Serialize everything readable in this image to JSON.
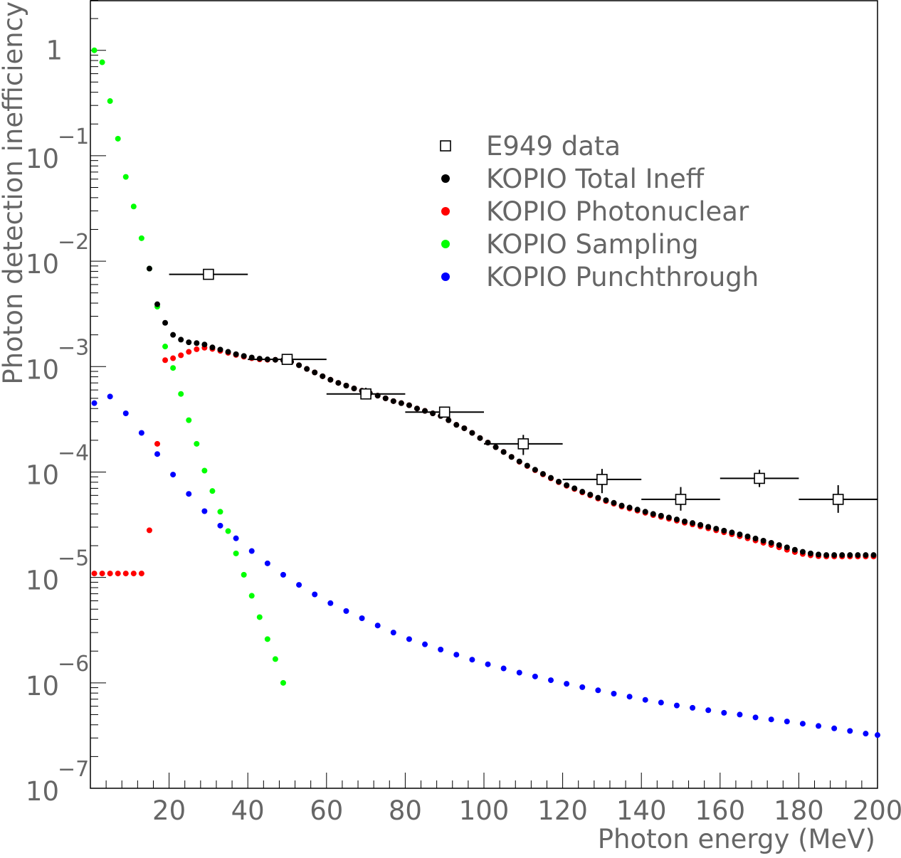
{
  "chart_data": {
    "type": "scatter",
    "xlabel": "Photon energy (MeV)",
    "ylabel": "Photon detection inefficiency",
    "xlim": [
      0,
      200
    ],
    "ylim": [
      1e-07,
      3
    ],
    "yscale": "log",
    "x_ticks": [
      20,
      40,
      60,
      80,
      100,
      120,
      140,
      160,
      180,
      200
    ],
    "y_ticks": [
      {
        "value": 1,
        "base": "1",
        "exp": ""
      },
      {
        "value": 0.1,
        "base": "10",
        "exp": "−1"
      },
      {
        "value": 0.01,
        "base": "10",
        "exp": "−2"
      },
      {
        "value": 0.001,
        "base": "10",
        "exp": "−3"
      },
      {
        "value": 0.0001,
        "base": "10",
        "exp": "−4"
      },
      {
        "value": 1e-05,
        "base": "10",
        "exp": "−5"
      },
      {
        "value": 1e-06,
        "base": "10",
        "exp": "−6"
      },
      {
        "value": 1e-07,
        "base": "10",
        "exp": "−7"
      }
    ],
    "grid": false,
    "legend_position": "top-right",
    "legend": [
      {
        "label": "E949 data",
        "marker": "open-square",
        "color": "#000000"
      },
      {
        "label": "KOPIO Total Ineff",
        "marker": "dot",
        "color": "#000000"
      },
      {
        "label": "KOPIO Photonuclear",
        "marker": "dot",
        "color": "#ff0000"
      },
      {
        "label": "KOPIO Sampling",
        "marker": "dot",
        "color": "#00ff00"
      },
      {
        "label": "KOPIO Punchthrough",
        "marker": "dot",
        "color": "#0000ff"
      }
    ],
    "e949_data": [
      {
        "x": 30,
        "y": 0.0075,
        "xerr": 10,
        "ylo": 0.0075,
        "yhi": 0.0075
      },
      {
        "x": 50,
        "y": 0.00117,
        "xerr": 10,
        "ylo": 0.00117,
        "yhi": 0.00117
      },
      {
        "x": 70,
        "y": 0.00055,
        "xerr": 10,
        "ylo": 0.00049,
        "yhi": 0.00063
      },
      {
        "x": 90,
        "y": 0.00037,
        "xerr": 10,
        "ylo": 0.00033,
        "yhi": 0.00041
      },
      {
        "x": 110,
        "y": 0.000185,
        "xerr": 10,
        "ylo": 0.000145,
        "yhi": 0.000225
      },
      {
        "x": 130,
        "y": 8.5e-05,
        "xerr": 10,
        "ylo": 6.3e-05,
        "yhi": 0.000107
      },
      {
        "x": 150,
        "y": 5.5e-05,
        "xerr": 10,
        "ylo": 4.3e-05,
        "yhi": 7.2e-05
      },
      {
        "x": 170,
        "y": 8.7e-05,
        "xerr": 10,
        "ylo": 7.2e-05,
        "yhi": 0.000105
      },
      {
        "x": 190,
        "y": 5.5e-05,
        "xerr": 10,
        "ylo": 4.1e-05,
        "yhi": 7.5e-05
      }
    ],
    "series": [
      {
        "name": "KOPIO Sampling",
        "color": "#00ff00",
        "points": [
          [
            1,
            1.0
          ],
          [
            3,
            0.77
          ],
          [
            5,
            0.33
          ],
          [
            7,
            0.145
          ],
          [
            9,
            0.063
          ],
          [
            11,
            0.033
          ],
          [
            13,
            0.0165
          ],
          [
            15,
            0.0085
          ],
          [
            17,
            0.0037
          ],
          [
            19,
            0.00155
          ],
          [
            21,
            0.00097
          ],
          [
            23,
            0.00055
          ],
          [
            25,
            0.00031
          ],
          [
            27,
            0.000185
          ],
          [
            29,
            0.000103
          ],
          [
            31,
            6.6e-05
          ],
          [
            33,
            4.2e-05
          ],
          [
            35,
            2.75e-05
          ],
          [
            37,
            1.69e-05
          ],
          [
            39,
            1.06e-05
          ],
          [
            41,
            6.7e-06
          ],
          [
            43,
            4.2e-06
          ],
          [
            45,
            2.6e-06
          ],
          [
            47,
            1.68e-06
          ],
          [
            49,
            1e-06
          ]
        ]
      },
      {
        "name": "KOPIO Photonuclear",
        "color": "#ff0000",
        "points": [
          [
            1,
            1.09e-05
          ],
          [
            3,
            1.09e-05
          ],
          [
            5,
            1.09e-05
          ],
          [
            7,
            1.09e-05
          ],
          [
            9,
            1.09e-05
          ],
          [
            11,
            1.09e-05
          ],
          [
            13,
            1.09e-05
          ],
          [
            15,
            2.8e-05
          ],
          [
            17,
            0.000185
          ],
          [
            19,
            0.00115
          ],
          [
            21,
            0.0012
          ],
          [
            23,
            0.00128
          ],
          [
            25,
            0.00138
          ],
          [
            27,
            0.00146
          ],
          [
            29,
            0.00151
          ],
          [
            31,
            0.00147
          ],
          [
            33,
            0.00141
          ],
          [
            35,
            0.00135
          ],
          [
            37,
            0.00129
          ],
          [
            39,
            0.00124
          ],
          [
            41,
            0.0012
          ],
          [
            43,
            0.00117
          ],
          [
            45,
            0.00116
          ],
          [
            47,
            0.00116
          ],
          [
            49,
            0.00115
          ],
          [
            51,
            0.00111
          ],
          [
            53,
            0.00103
          ],
          [
            55,
            0.00095
          ],
          [
            57,
            0.00088
          ],
          [
            59,
            0.00081
          ],
          [
            61,
            0.00075
          ],
          [
            63,
            0.0007
          ],
          [
            65,
            0.00066
          ],
          [
            67,
            0.00062
          ],
          [
            69,
            0.00059
          ],
          [
            71,
            0.00056
          ],
          [
            73,
            0.00053
          ],
          [
            75,
            0.0005
          ],
          [
            77,
            0.00047
          ],
          [
            79,
            0.00045
          ],
          [
            81,
            0.00043
          ],
          [
            83,
            0.0004
          ],
          [
            85,
            0.00038
          ],
          [
            87,
            0.00036
          ],
          [
            89,
            0.00034
          ],
          [
            91,
            0.00031
          ],
          [
            93,
            0.00028
          ],
          [
            95,
            0.00026
          ],
          [
            97,
            0.000235
          ],
          [
            99,
            0.00021
          ],
          [
            101,
            0.00019
          ],
          [
            103,
            0.000172
          ],
          [
            105,
            0.000155
          ],
          [
            107,
            0.000139
          ],
          [
            109,
            0.000125
          ],
          [
            111,
            0.000114
          ],
          [
            113,
            0.000104
          ],
          [
            115,
            9.5e-05
          ],
          [
            117,
            8.7e-05
          ],
          [
            119,
            8e-05
          ],
          [
            121,
            7.4e-05
          ],
          [
            123,
            6.9e-05
          ],
          [
            125,
            6.4e-05
          ],
          [
            127,
            6e-05
          ],
          [
            129,
            5.6e-05
          ],
          [
            131,
            5.3e-05
          ],
          [
            133,
            5e-05
          ],
          [
            135,
            4.7e-05
          ],
          [
            137,
            4.5e-05
          ],
          [
            139,
            4.3e-05
          ],
          [
            141,
            4.1e-05
          ],
          [
            143,
            3.9e-05
          ],
          [
            145,
            3.75e-05
          ],
          [
            147,
            3.6e-05
          ],
          [
            149,
            3.45e-05
          ],
          [
            151,
            3.3e-05
          ],
          [
            153,
            3.18e-05
          ],
          [
            155,
            3.05e-05
          ],
          [
            157,
            2.92e-05
          ],
          [
            159,
            2.8e-05
          ],
          [
            161,
            2.68e-05
          ],
          [
            163,
            2.57e-05
          ],
          [
            165,
            2.46e-05
          ],
          [
            167,
            2.35e-05
          ],
          [
            169,
            2.24e-05
          ],
          [
            171,
            2.13e-05
          ],
          [
            173,
            2.03e-05
          ],
          [
            175,
            1.93e-05
          ],
          [
            177,
            1.83e-05
          ],
          [
            179,
            1.74e-05
          ],
          [
            181,
            1.67e-05
          ],
          [
            183,
            1.62e-05
          ],
          [
            185,
            1.59e-05
          ],
          [
            187,
            1.58e-05
          ],
          [
            189,
            1.58e-05
          ],
          [
            191,
            1.58e-05
          ],
          [
            193,
            1.58e-05
          ],
          [
            195,
            1.58e-05
          ],
          [
            197,
            1.58e-05
          ],
          [
            199,
            1.58e-05
          ]
        ]
      },
      {
        "name": "KOPIO Total Ineff",
        "color": "#000000",
        "points": [
          [
            15,
            0.0085
          ],
          [
            17,
            0.0039
          ],
          [
            19,
            0.0026
          ],
          [
            21,
            0.002
          ],
          [
            23,
            0.0018
          ],
          [
            25,
            0.0017
          ],
          [
            27,
            0.00167
          ],
          [
            29,
            0.00162
          ],
          [
            31,
            0.00152
          ],
          [
            33,
            0.00145
          ],
          [
            35,
            0.00138
          ],
          [
            37,
            0.00131
          ],
          [
            39,
            0.00126
          ],
          [
            41,
            0.00122
          ],
          [
            43,
            0.00119
          ],
          [
            45,
            0.00117
          ],
          [
            47,
            0.00116
          ],
          [
            49,
            0.00115
          ],
          [
            51,
            0.00111
          ],
          [
            53,
            0.00103
          ],
          [
            55,
            0.00095
          ],
          [
            57,
            0.00088
          ],
          [
            59,
            0.00081
          ],
          [
            61,
            0.00075
          ],
          [
            63,
            0.0007
          ],
          [
            65,
            0.00066
          ],
          [
            67,
            0.00062
          ],
          [
            69,
            0.00059
          ],
          [
            71,
            0.00056
          ],
          [
            73,
            0.00053
          ],
          [
            75,
            0.0005
          ],
          [
            77,
            0.00047
          ],
          [
            79,
            0.00045
          ],
          [
            81,
            0.00043
          ],
          [
            83,
            0.0004
          ],
          [
            85,
            0.00038
          ],
          [
            87,
            0.00036
          ],
          [
            89,
            0.00034
          ],
          [
            91,
            0.00031
          ],
          [
            93,
            0.00028
          ],
          [
            95,
            0.00026
          ],
          [
            97,
            0.000235
          ],
          [
            99,
            0.00021
          ],
          [
            101,
            0.00019
          ],
          [
            103,
            0.000172
          ],
          [
            105,
            0.000155
          ],
          [
            107,
            0.000139
          ],
          [
            109,
            0.000126
          ],
          [
            111,
            0.000115
          ],
          [
            113,
            0.000105
          ],
          [
            115,
            9.6e-05
          ],
          [
            117,
            8.8e-05
          ],
          [
            119,
            8.1e-05
          ],
          [
            121,
            7.5e-05
          ],
          [
            123,
            7e-05
          ],
          [
            125,
            6.5e-05
          ],
          [
            127,
            6.1e-05
          ],
          [
            129,
            5.7e-05
          ],
          [
            131,
            5.4e-05
          ],
          [
            133,
            5.1e-05
          ],
          [
            135,
            4.8e-05
          ],
          [
            137,
            4.6e-05
          ],
          [
            139,
            4.4e-05
          ],
          [
            141,
            4.2e-05
          ],
          [
            143,
            4e-05
          ],
          [
            145,
            3.85e-05
          ],
          [
            147,
            3.7e-05
          ],
          [
            149,
            3.55e-05
          ],
          [
            151,
            3.4e-05
          ],
          [
            153,
            3.28e-05
          ],
          [
            155,
            3.15e-05
          ],
          [
            157,
            3.02e-05
          ],
          [
            159,
            2.9e-05
          ],
          [
            161,
            2.78e-05
          ],
          [
            163,
            2.67e-05
          ],
          [
            165,
            2.56e-05
          ],
          [
            167,
            2.45e-05
          ],
          [
            169,
            2.34e-05
          ],
          [
            171,
            2.23e-05
          ],
          [
            173,
            2.13e-05
          ],
          [
            175,
            2.03e-05
          ],
          [
            177,
            1.93e-05
          ],
          [
            179,
            1.83e-05
          ],
          [
            181,
            1.75e-05
          ],
          [
            183,
            1.69e-05
          ],
          [
            185,
            1.65e-05
          ],
          [
            187,
            1.63e-05
          ],
          [
            189,
            1.63e-05
          ],
          [
            191,
            1.63e-05
          ],
          [
            193,
            1.63e-05
          ],
          [
            195,
            1.63e-05
          ],
          [
            197,
            1.63e-05
          ],
          [
            199,
            1.63e-05
          ]
        ]
      },
      {
        "name": "KOPIO Punchthrough",
        "color": "#0000ff",
        "points": [
          [
            1,
            0.00045
          ],
          [
            5,
            0.00052
          ],
          [
            9,
            0.00036
          ],
          [
            13,
            0.000235
          ],
          [
            17,
            0.000148
          ],
          [
            21,
            9.45e-05
          ],
          [
            25,
            6.2e-05
          ],
          [
            29,
            4.25e-05
          ],
          [
            33,
            3.1e-05
          ],
          [
            37,
            2.35e-05
          ],
          [
            41,
            1.78e-05
          ],
          [
            45,
            1.36e-05
          ],
          [
            49,
            1.06e-05
          ],
          [
            53,
            8.5e-06
          ],
          [
            57,
            6.9e-06
          ],
          [
            61,
            5.7e-06
          ],
          [
            65,
            4.8e-06
          ],
          [
            69,
            4.1e-06
          ],
          [
            73,
            3.5e-06
          ],
          [
            77,
            3e-06
          ],
          [
            81,
            2.6e-06
          ],
          [
            85,
            2.32e-06
          ],
          [
            89,
            2.07e-06
          ],
          [
            93,
            1.85e-06
          ],
          [
            97,
            1.66e-06
          ],
          [
            101,
            1.5e-06
          ],
          [
            105,
            1.37e-06
          ],
          [
            109,
            1.25e-06
          ],
          [
            113,
            1.15e-06
          ],
          [
            117,
            1.06e-06
          ],
          [
            121,
            9.8e-07
          ],
          [
            125,
            9.1e-07
          ],
          [
            129,
            8.5e-07
          ],
          [
            133,
            7.9e-07
          ],
          [
            137,
            7.4e-07
          ],
          [
            141,
            6.9e-07
          ],
          [
            145,
            6.5e-07
          ],
          [
            149,
            6.1e-07
          ],
          [
            153,
            5.8e-07
          ],
          [
            157,
            5.5e-07
          ],
          [
            161,
            5.2e-07
          ],
          [
            165,
            5e-07
          ],
          [
            169,
            4.7e-07
          ],
          [
            173,
            4.5e-07
          ],
          [
            177,
            4.3e-07
          ],
          [
            181,
            4.1e-07
          ],
          [
            185,
            3.9e-07
          ],
          [
            189,
            3.7e-07
          ],
          [
            193,
            3.5e-07
          ],
          [
            197,
            3.3e-07
          ],
          [
            200,
            3.2e-07
          ]
        ]
      }
    ]
  }
}
